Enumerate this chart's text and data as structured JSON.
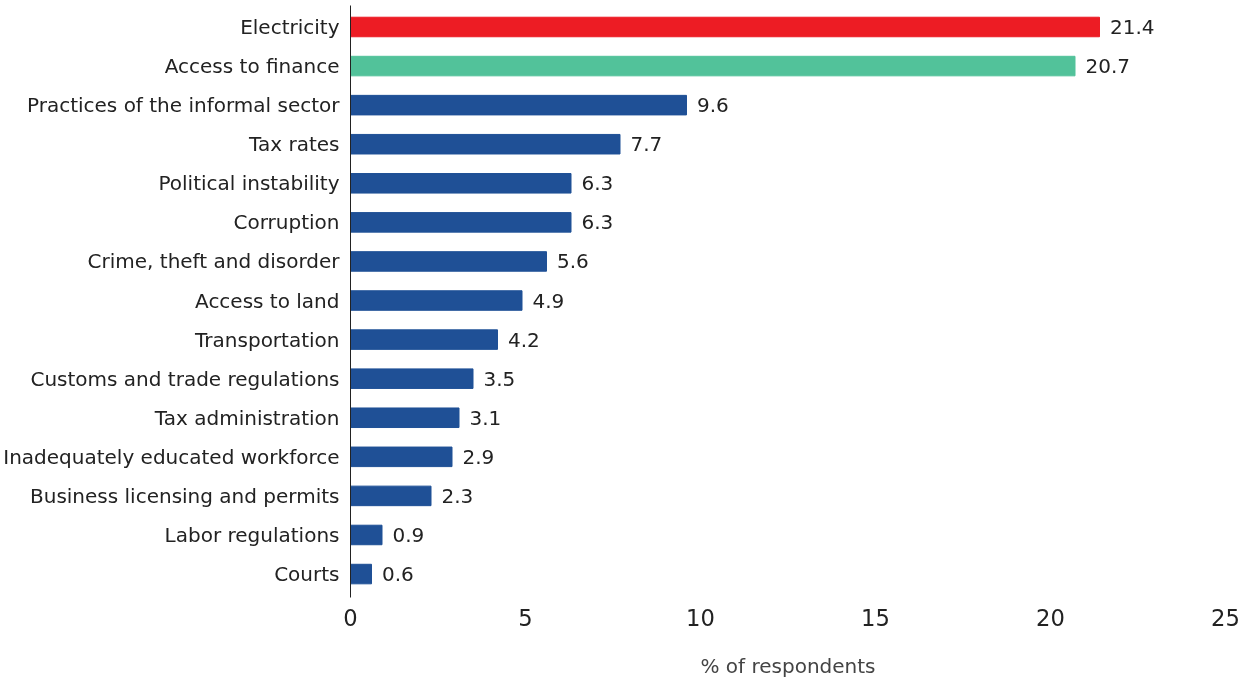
{
  "chart_data": {
    "type": "bar",
    "orientation": "horizontal",
    "xlabel": "% of respondents",
    "categories": [
      "Electricity",
      "Access to finance",
      "Practices of the informal sector",
      "Tax rates",
      "Political instability",
      "Corruption",
      "Crime, theft and disorder",
      "Access to land",
      "Transportation",
      "Customs and trade regulations",
      "Tax administration",
      "Inadequately educated workforce",
      "Business licensing and permits",
      "Labor regulations",
      "Courts"
    ],
    "values": [
      21.4,
      20.7,
      9.6,
      7.7,
      6.3,
      6.3,
      5.6,
      4.9,
      4.2,
      3.5,
      3.1,
      2.9,
      2.3,
      0.9,
      0.6
    ],
    "colors": [
      "#ed1c24",
      "#52c29a",
      "#1f5096",
      "#1f5096",
      "#1f5096",
      "#1f5096",
      "#1f5096",
      "#1f5096",
      "#1f5096",
      "#1f5096",
      "#1f5096",
      "#1f5096",
      "#1f5096",
      "#1f5096",
      "#1f5096"
    ],
    "xlim": [
      0,
      25
    ],
    "xticks": [
      0,
      5,
      10,
      15,
      20,
      25
    ],
    "data_labels": true,
    "grid": false
  }
}
